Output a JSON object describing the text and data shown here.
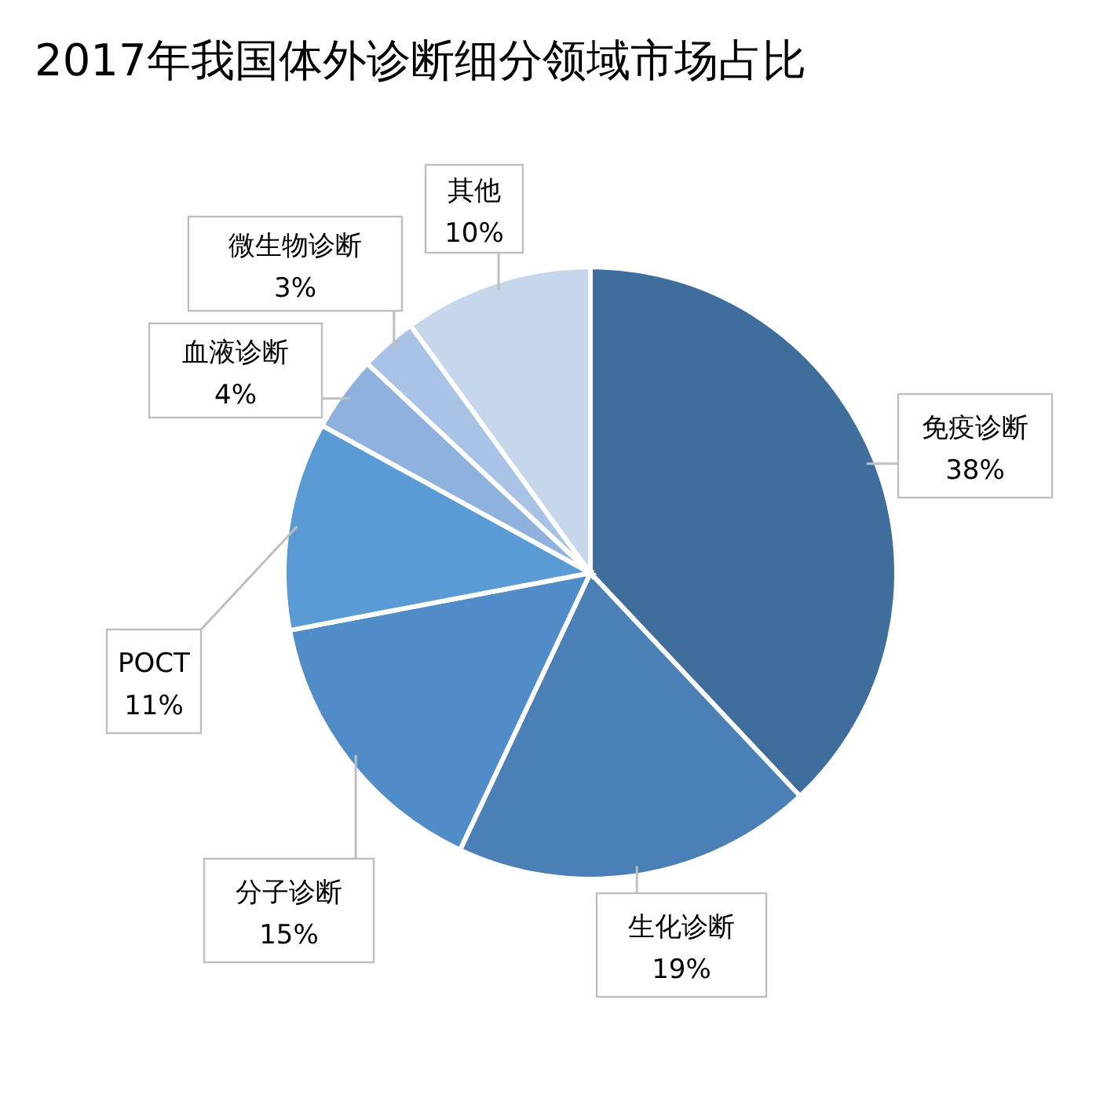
{
  "chart_data": {
    "type": "pie",
    "title": "2017年我国体外诊断细分领域市场占比",
    "categories": [
      "免疫诊断",
      "生化诊断",
      "分子诊断",
      "POCT",
      "血液诊断",
      "微生物诊断",
      "其他"
    ],
    "values": [
      38,
      19,
      15,
      11,
      4,
      3,
      10
    ],
    "value_labels": [
      "38%",
      "19%",
      "15%",
      "11%",
      "4%",
      "3%",
      "10%"
    ],
    "colors": [
      "#3f6e9d",
      "#4a80b6",
      "#508cc7",
      "#5b9bd5",
      "#8fb1dd",
      "#a8c3e6",
      "#c6d6eb"
    ],
    "legend": false
  }
}
